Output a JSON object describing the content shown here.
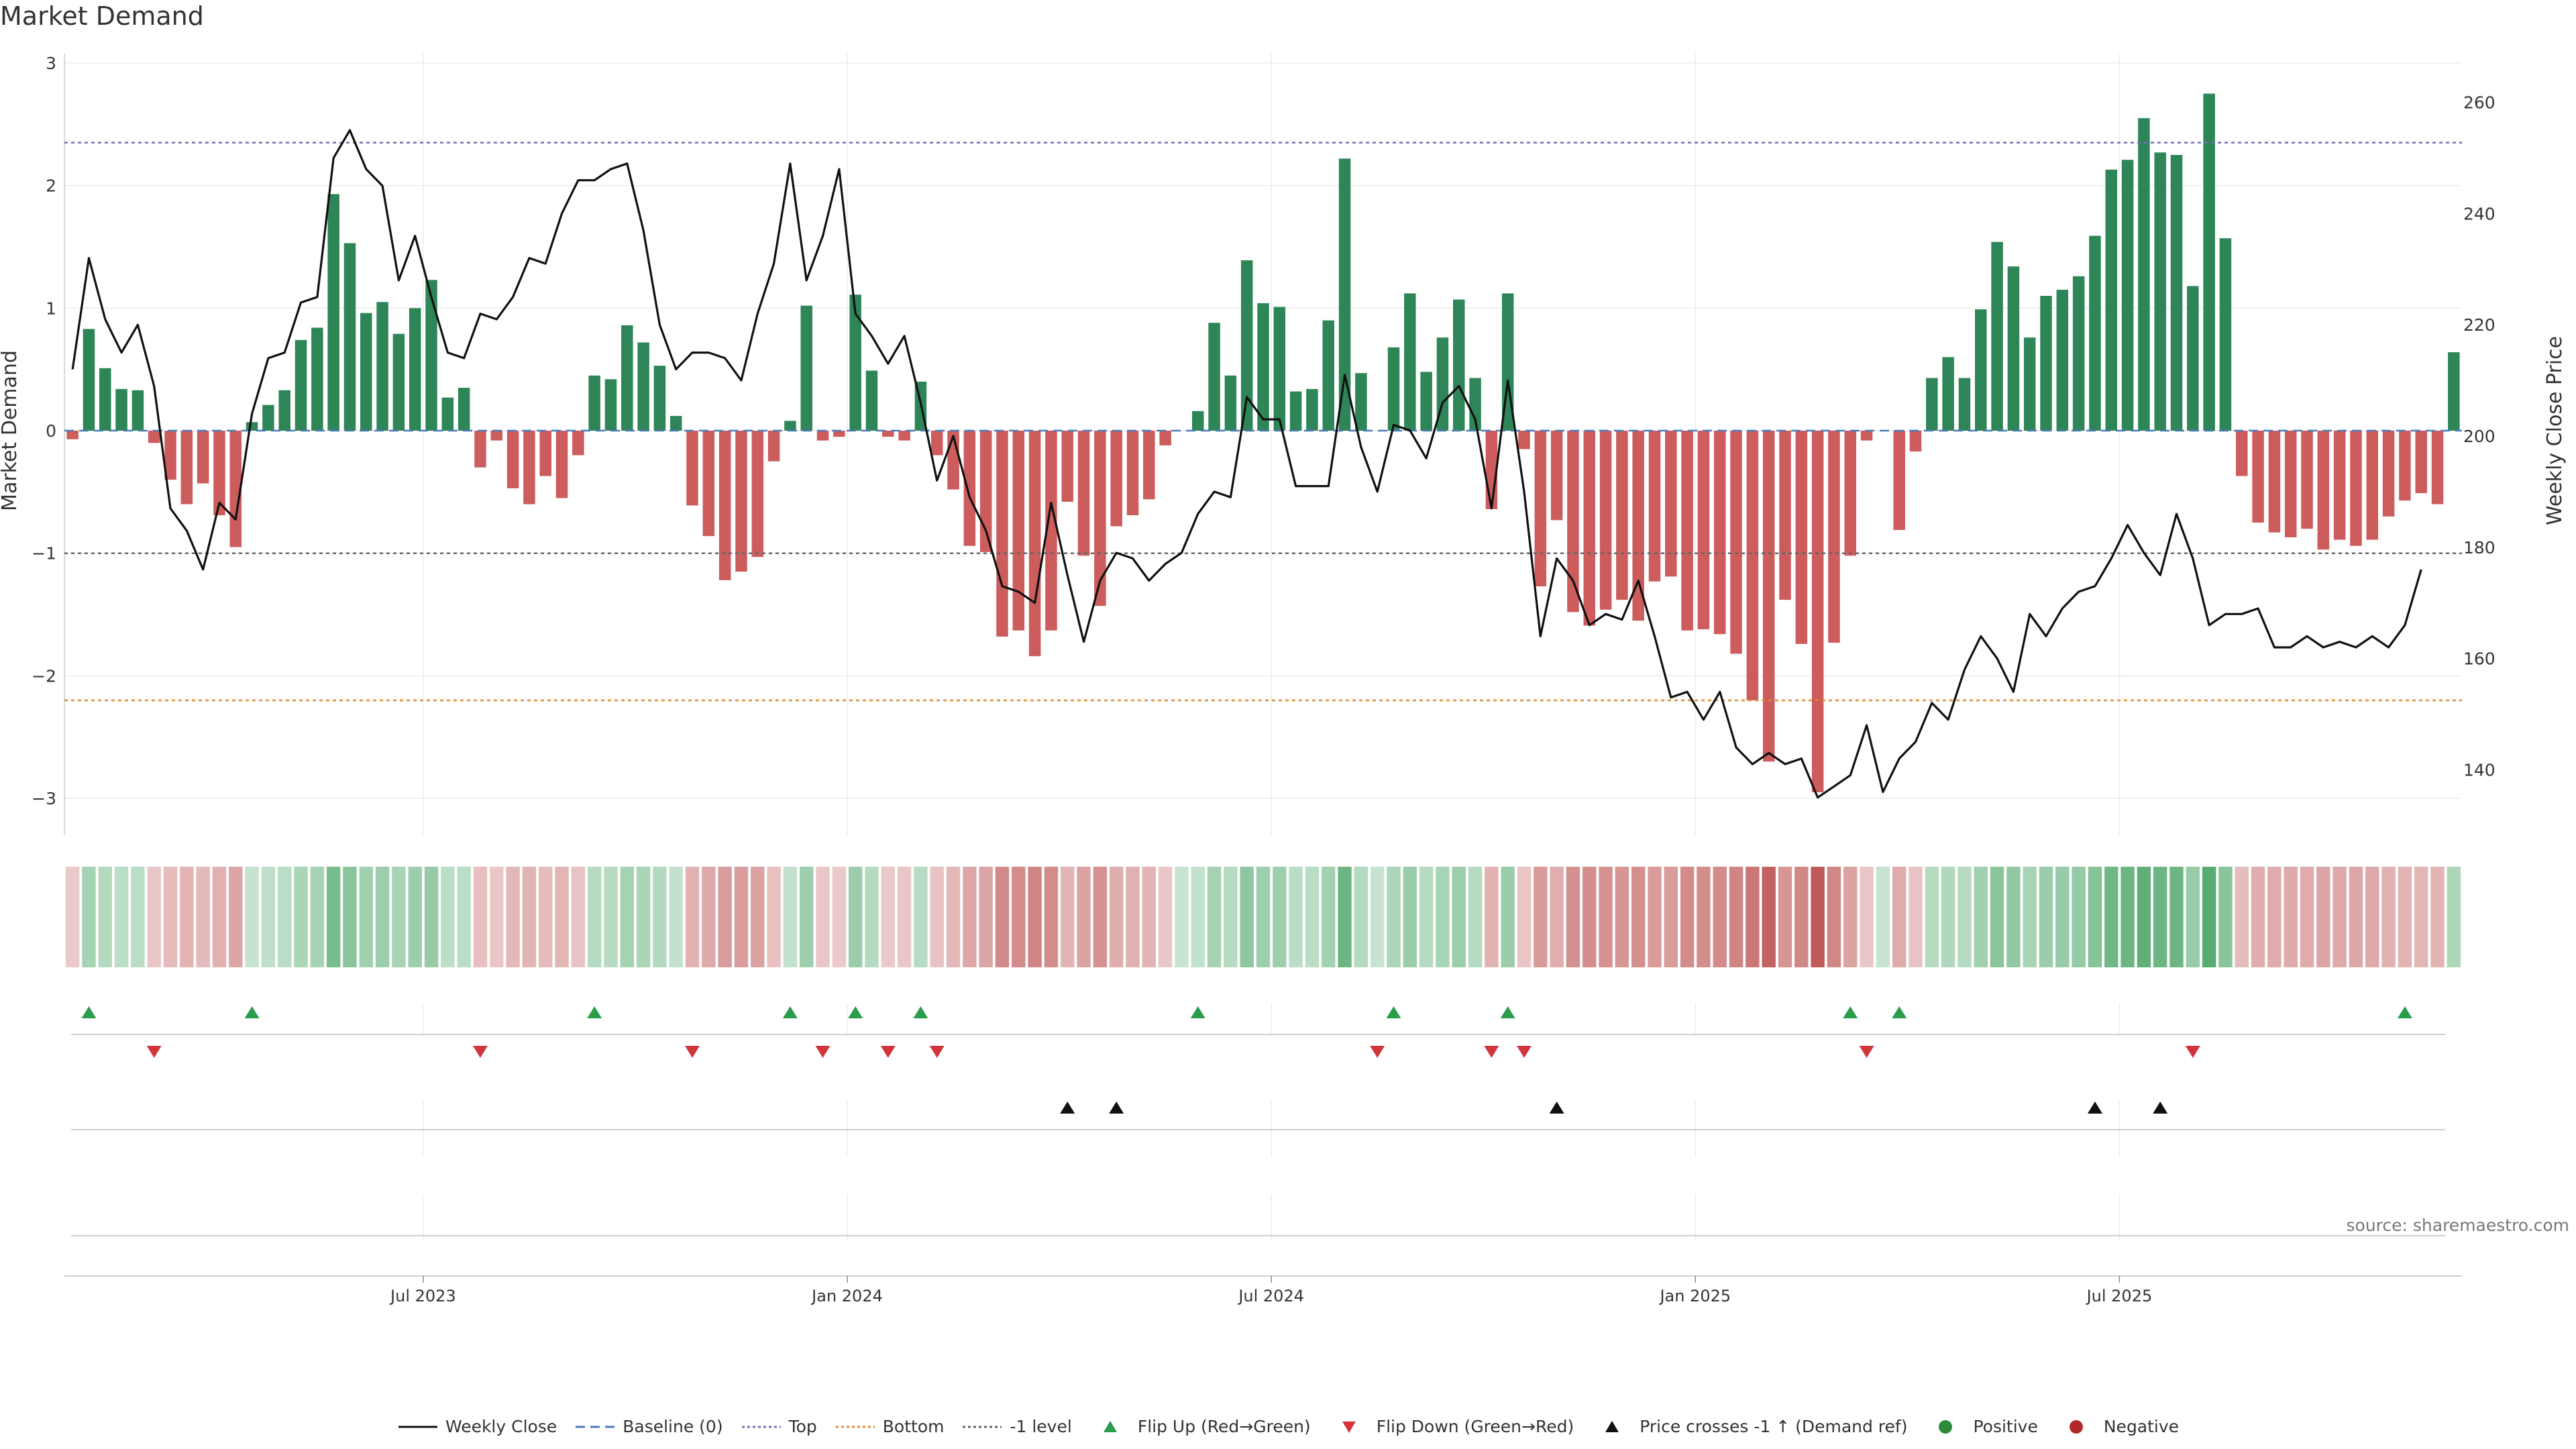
{
  "title": "Market Demand",
  "source": "source: sharemaestro.com",
  "chart_data": {
    "type": "bar+line",
    "title": "Market Demand",
    "ylabel": "Market Demand",
    "y2label": "Weekly Close Price",
    "ylim": [
      -3.3,
      3.05
    ],
    "y2lim": [
      133.5,
      267.4
    ],
    "yticks": [
      3,
      2,
      1,
      0,
      -1,
      -2,
      -3
    ],
    "ytick_labels": [
      "3",
      "2",
      "1",
      "0",
      "−1",
      "−2",
      "−3"
    ],
    "y2ticks": [
      260,
      240,
      220,
      200,
      180,
      160,
      140
    ],
    "xticks": [
      {
        "label": "Jul 2023",
        "week": 22
      },
      {
        "label": "Jan 2024",
        "week": 48
      },
      {
        "label": "Jul 2024",
        "week": 74
      },
      {
        "label": "Jan 2025",
        "week": 100
      },
      {
        "label": "Jul 2025",
        "week": 126
      }
    ],
    "reference_lines": {
      "top": 2.35,
      "bottom": -2.2,
      "minus_one": -1,
      "baseline": 0
    },
    "demand": [
      -0.07,
      0.83,
      0.51,
      0.34,
      0.33,
      -0.1,
      -0.4,
      -0.6,
      -0.43,
      -0.69,
      -0.95,
      0.07,
      0.21,
      0.33,
      0.74,
      0.84,
      1.93,
      1.53,
      0.96,
      1.05,
      0.79,
      1.0,
      1.23,
      0.27,
      0.35,
      -0.3,
      -0.08,
      -0.47,
      -0.6,
      -0.37,
      -0.55,
      -0.2,
      0.45,
      0.42,
      0.86,
      0.72,
      0.53,
      0.12,
      -0.61,
      -0.86,
      -1.22,
      -1.15,
      -1.03,
      -0.25,
      0.08,
      1.02,
      -0.08,
      -0.05,
      1.11,
      0.49,
      -0.05,
      -0.08,
      0.4,
      -0.2,
      -0.48,
      -0.94,
      -0.99,
      -1.68,
      -1.63,
      -1.84,
      -1.63,
      -0.58,
      -1.02,
      -1.43,
      -0.78,
      -0.69,
      -0.56,
      -0.12,
      0.0,
      0.16,
      0.88,
      0.45,
      1.39,
      1.04,
      1.01,
      0.32,
      0.34,
      0.9,
      2.22,
      0.47,
      0.0,
      0.68,
      1.12,
      0.48,
      0.76,
      1.07,
      0.43,
      -0.64,
      1.12,
      -0.15,
      -1.27,
      -0.73,
      -1.48,
      -1.59,
      -1.46,
      -1.38,
      -1.55,
      -1.23,
      -1.19,
      -1.63,
      -1.62,
      -1.66,
      -1.82,
      -2.2,
      -2.7,
      -1.38,
      -1.74,
      -2.95,
      -1.73,
      -1.02,
      -0.08,
      0.0,
      -0.81,
      -0.17,
      0.43,
      0.6,
      0.43,
      0.99,
      1.54,
      1.34,
      0.76,
      1.1,
      1.15,
      1.26,
      1.59,
      2.13,
      2.21,
      2.55,
      2.27,
      2.25,
      1.18,
      2.75,
      1.57,
      -0.37,
      -0.75,
      -0.83,
      -0.87,
      -0.8,
      -0.97,
      -0.89,
      -0.94,
      -0.89,
      -0.7,
      -0.57,
      -0.51,
      -0.6,
      0.64
    ],
    "close": [
      212,
      232,
      221,
      215,
      220,
      209,
      187,
      183,
      176,
      188,
      185,
      204,
      214,
      215,
      224,
      225,
      250,
      255,
      248,
      245,
      228,
      236,
      225,
      215,
      214,
      222,
      221,
      225,
      232,
      231,
      240,
      246,
      246,
      248,
      249,
      237,
      220,
      212,
      215,
      215,
      214,
      210,
      222,
      231,
      249,
      228,
      236,
      248,
      222,
      218,
      213,
      218,
      206,
      192,
      200,
      189,
      183,
      173,
      172,
      170,
      188,
      175,
      163,
      174,
      179,
      178,
      174,
      177,
      179,
      186,
      190,
      189,
      207,
      203,
      203,
      191,
      191,
      191,
      211,
      198,
      190,
      202,
      201,
      196,
      206,
      209,
      203,
      187,
      210,
      190,
      164,
      178,
      174,
      166,
      168,
      167,
      174,
      164,
      153,
      154,
      149,
      154,
      144,
      141,
      143,
      141,
      142,
      135,
      137,
      139,
      148,
      136,
      142,
      145,
      152,
      149,
      158,
      164,
      160,
      154,
      168,
      164,
      169,
      172,
      173,
      178,
      184,
      179,
      175,
      186,
      178,
      166,
      168,
      168,
      169,
      162,
      162,
      164,
      162,
      163,
      162,
      164,
      162,
      166,
      176
    ]
  },
  "event_rows": {
    "flip_up": [
      1,
      11,
      32,
      44,
      48,
      52,
      69,
      81,
      88,
      109,
      112,
      143
    ],
    "flip_down": [
      5,
      25,
      38,
      46,
      50,
      53,
      80,
      87,
      89,
      110,
      130
    ],
    "price_cross_up": [
      61,
      64,
      91,
      124,
      128
    ]
  },
  "legend": [
    {
      "label": "Weekly Close",
      "kind": "line",
      "color": "#111111"
    },
    {
      "label": "Baseline (0)",
      "kind": "dash",
      "color": "#4a7ab8"
    },
    {
      "label": "Top",
      "kind": "dot",
      "color": "#7070b8"
    },
    {
      "label": "Bottom",
      "kind": "dot",
      "color": "#e08a30"
    },
    {
      "label": "-1 level",
      "kind": "dot",
      "color": "#666666"
    },
    {
      "label": "Flip Up (Red→Green)",
      "kind": "tri-up",
      "color": "#2a9d4a"
    },
    {
      "label": "Flip Down (Green→Red)",
      "kind": "tri-down",
      "color": "#d2343b"
    },
    {
      "label": "Price crosses -1 ↑ (Demand ref)",
      "kind": "tri-up",
      "color": "#111111"
    },
    {
      "label": "Positive",
      "kind": "dot-circle",
      "color": "#2e8b3c"
    },
    {
      "label": "Negative",
      "kind": "dot-circle",
      "color": "#b02a2a"
    }
  ],
  "colors": {
    "positive": "#2e8658",
    "negative": "#cd5c5c",
    "grid": "#e6e6e6"
  }
}
